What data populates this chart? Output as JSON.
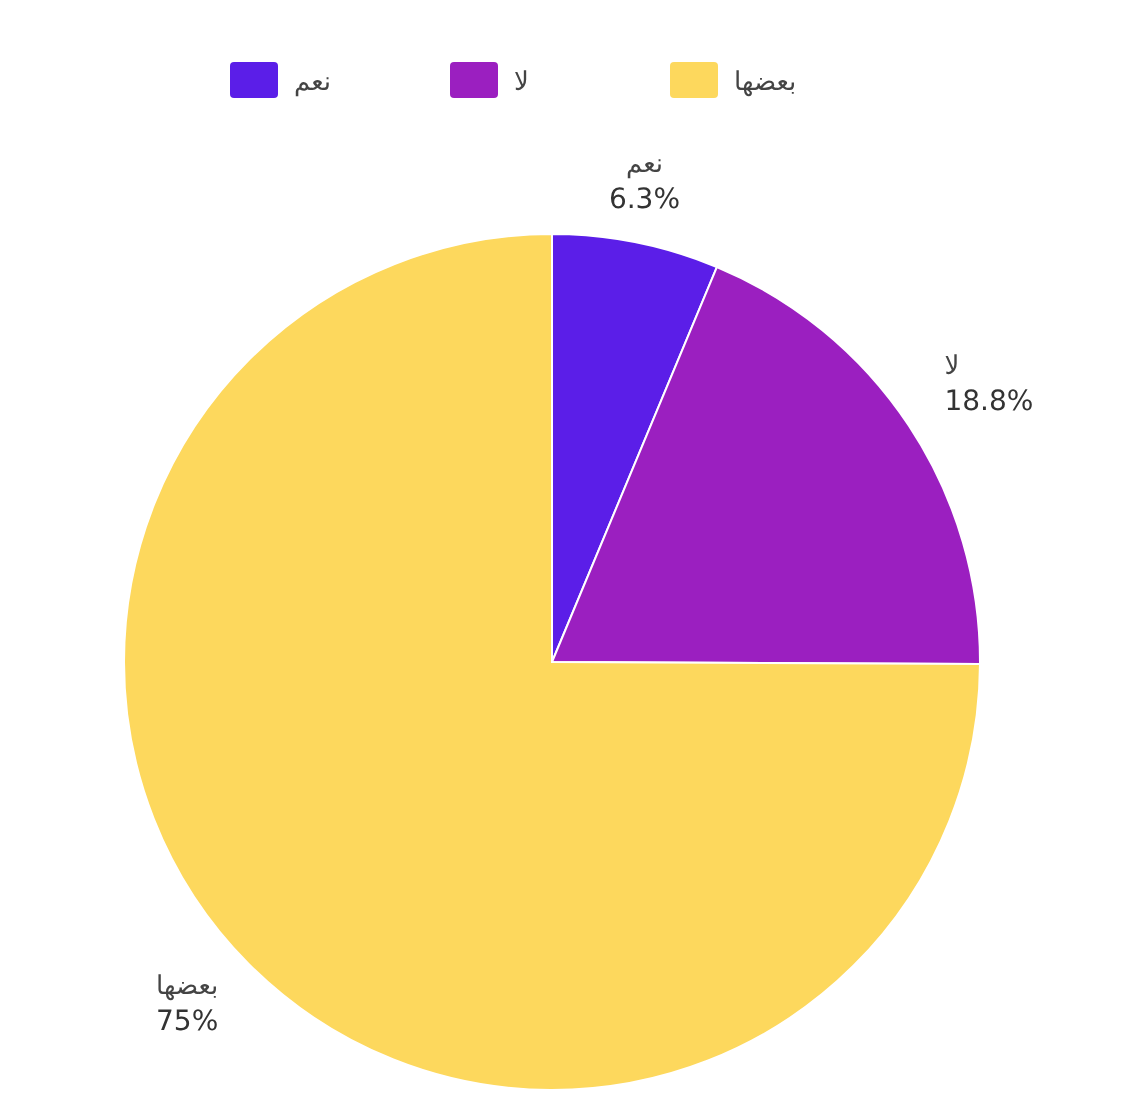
{
  "chart_data": {
    "type": "pie",
    "categories": [
      "نعم",
      "لا",
      "بعضها"
    ],
    "values": [
      6.3,
      18.8,
      75
    ],
    "value_labels": [
      "6.3%",
      "18.8%",
      "75%"
    ],
    "colors": [
      "#5b1ee8",
      "#9b1fc0",
      "#fdd85d"
    ],
    "legend": "top"
  }
}
